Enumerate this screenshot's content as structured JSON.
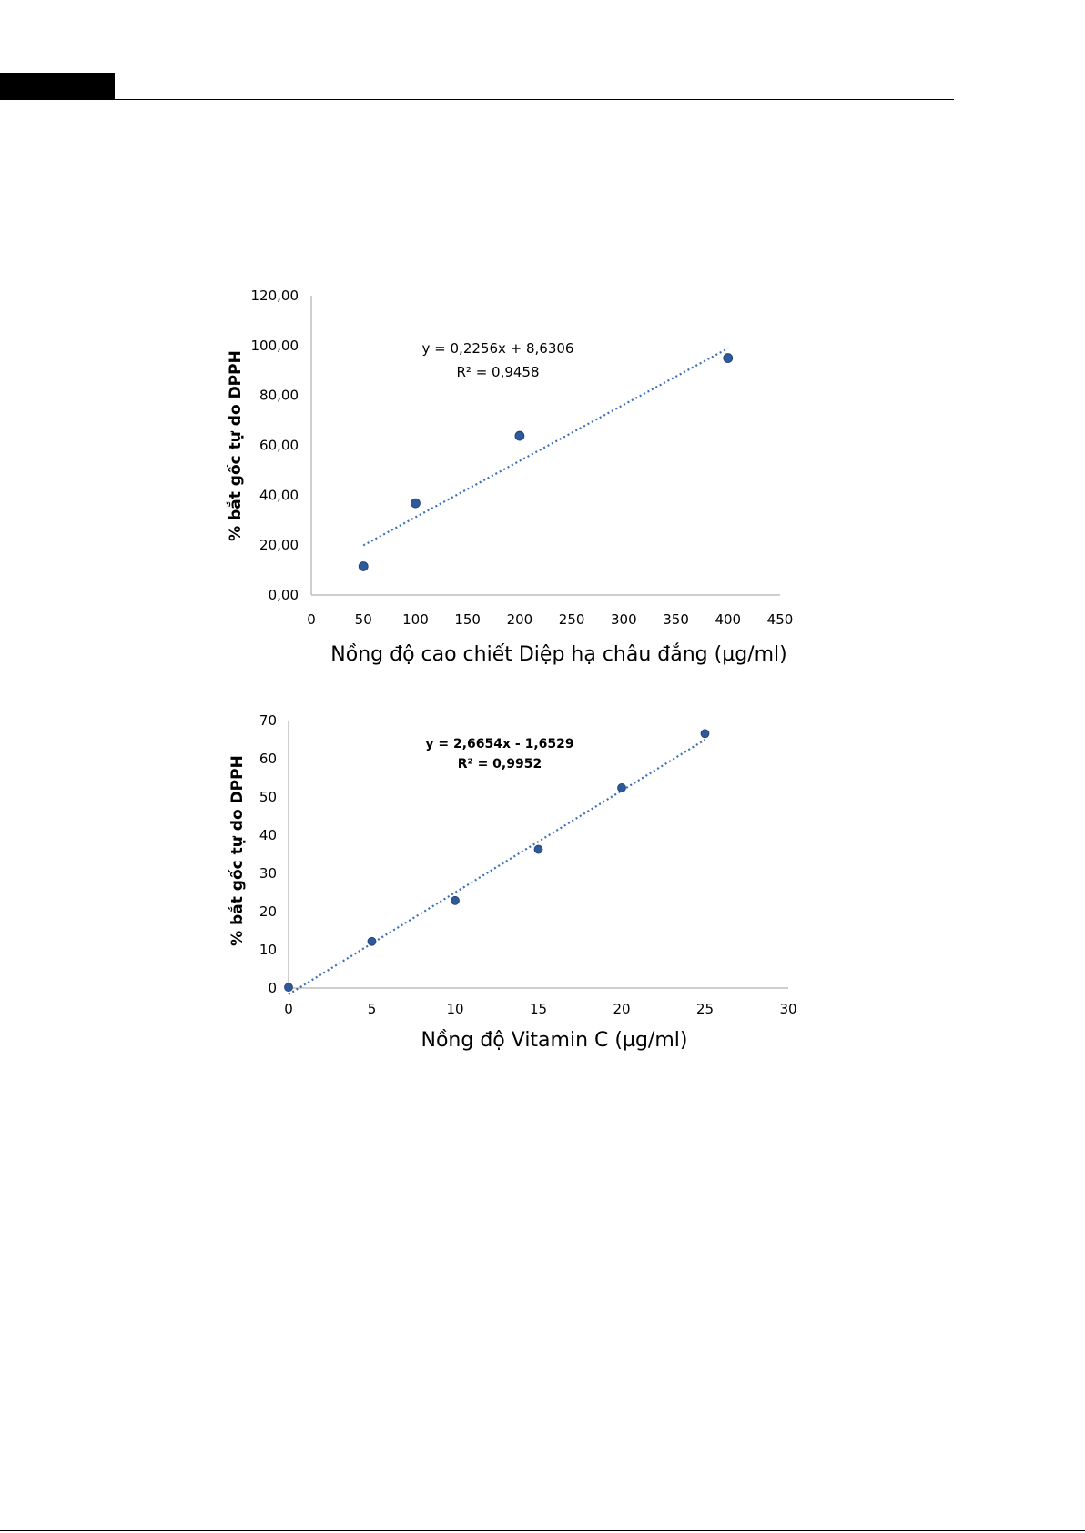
{
  "chart_data": [
    {
      "type": "scatter",
      "xlabel": "Nồng độ cao chiết Diệp hạ châu đắng (µg/ml)",
      "ylabel": "% bắt gốc tự do DPPH",
      "xlim": [
        0,
        450
      ],
      "ylim": [
        0,
        120
      ],
      "x_ticks": [
        "0",
        "50",
        "100",
        "150",
        "200",
        "250",
        "300",
        "350",
        "400",
        "450"
      ],
      "y_ticks": [
        "0,00",
        "20,00",
        "40,00",
        "60,00",
        "80,00",
        "100,00",
        "120,00"
      ],
      "series": [
        {
          "x": [
            50,
            100,
            200,
            400
          ],
          "y": [
            11.5,
            36.8,
            63.8,
            95.0
          ]
        }
      ],
      "trendline": {
        "type": "linear",
        "slope": 0.2256,
        "intercept": 8.6306,
        "style": "dotted"
      },
      "equation": "y = 0,2256x + 8,6306",
      "r_squared": "R² = 0,9458",
      "grid": false,
      "marker_color": "#2e5a9c",
      "trend_color": "#3b6fb5"
    },
    {
      "type": "scatter",
      "xlabel": "Nồng độ Vitamin C (µg/ml)",
      "ylabel": "% bắt gốc tự do DPPH",
      "xlim": [
        0,
        30
      ],
      "ylim": [
        0,
        70
      ],
      "x_ticks": [
        "0",
        "5",
        "10",
        "15",
        "20",
        "25",
        "30"
      ],
      "y_ticks": [
        "0",
        "10",
        "20",
        "30",
        "40",
        "50",
        "60",
        "70"
      ],
      "series": [
        {
          "x": [
            0,
            5,
            10,
            15,
            20,
            25
          ],
          "y": [
            0.2,
            12.2,
            22.9,
            36.3,
            52.4,
            66.6
          ]
        }
      ],
      "trendline": {
        "type": "linear",
        "slope": 2.6654,
        "intercept": -1.6529,
        "style": "dotted"
      },
      "equation": "y = 2,6654x - 1,6529",
      "r_squared": "R² = 0,9952",
      "grid": false,
      "marker_color": "#2e5a9c",
      "trend_color": "#3b6fb5"
    }
  ]
}
